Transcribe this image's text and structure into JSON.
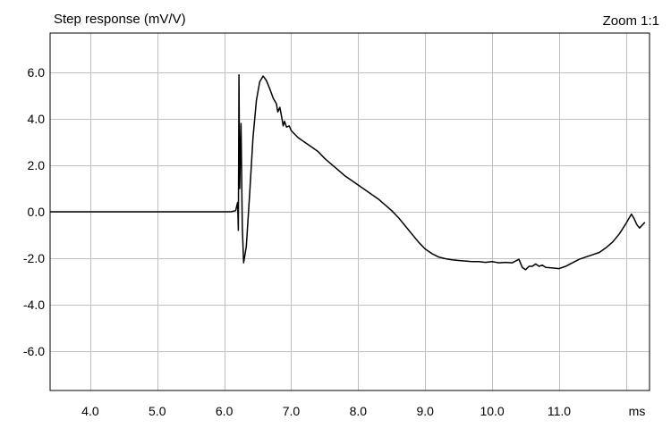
{
  "chart_data": {
    "type": "line",
    "title": "Step response (mV/V)",
    "zoom_label": "Zoom 1:1",
    "x_unit_label": "ms",
    "xlabel": "",
    "ylabel": "",
    "xlim": [
      3.4,
      12.35
    ],
    "ylim": [
      -7.7,
      7.7
    ],
    "x_ticks": [
      4.0,
      5.0,
      6.0,
      7.0,
      8.0,
      9.0,
      10.0,
      11.0
    ],
    "x_tick_labels": [
      "4.0",
      "5.0",
      "6.0",
      "7.0",
      "8.0",
      "9.0",
      "10.0",
      "11.0"
    ],
    "y_ticks": [
      6.0,
      4.0,
      2.0,
      0.0,
      -2.0,
      -4.0,
      -6.0
    ],
    "y_tick_labels": [
      "6.0",
      "4.0",
      "2.0",
      "0.0",
      "-2.0",
      "-4.0",
      "-6.0"
    ],
    "x_grid": [
      4.0,
      5.0,
      6.0,
      7.0,
      8.0,
      9.0,
      10.0,
      11.0,
      12.0
    ],
    "y_grid": [
      6.0,
      4.0,
      2.0,
      0.0,
      -2.0,
      -4.0,
      -6.0
    ],
    "grid": true,
    "colors": {
      "grid": "#c0c0c0",
      "line": "#000000",
      "frame": "#000000",
      "background": "#ffffff"
    },
    "series": [
      {
        "points": [
          [
            3.4,
            0.0
          ],
          [
            6.1,
            0.0
          ],
          [
            6.17,
            0.05
          ],
          [
            6.2,
            0.4
          ],
          [
            6.21,
            -0.8
          ],
          [
            6.22,
            5.9
          ],
          [
            6.23,
            1.0
          ],
          [
            6.25,
            3.8
          ],
          [
            6.27,
            -0.6
          ],
          [
            6.29,
            -2.2
          ],
          [
            6.33,
            -1.5
          ],
          [
            6.38,
            0.8
          ],
          [
            6.43,
            3.2
          ],
          [
            6.48,
            4.8
          ],
          [
            6.53,
            5.6
          ],
          [
            6.58,
            5.85
          ],
          [
            6.63,
            5.65
          ],
          [
            6.68,
            5.3
          ],
          [
            6.73,
            4.9
          ],
          [
            6.78,
            4.65
          ],
          [
            6.8,
            4.3
          ],
          [
            6.83,
            4.5
          ],
          [
            6.86,
            4.05
          ],
          [
            6.88,
            3.7
          ],
          [
            6.9,
            3.9
          ],
          [
            6.93,
            3.65
          ],
          [
            6.97,
            3.7
          ],
          [
            7.0,
            3.5
          ],
          [
            7.1,
            3.2
          ],
          [
            7.2,
            3.0
          ],
          [
            7.3,
            2.8
          ],
          [
            7.4,
            2.6
          ],
          [
            7.5,
            2.3
          ],
          [
            7.6,
            2.05
          ],
          [
            7.7,
            1.8
          ],
          [
            7.8,
            1.55
          ],
          [
            7.9,
            1.35
          ],
          [
            8.0,
            1.15
          ],
          [
            8.1,
            0.95
          ],
          [
            8.2,
            0.75
          ],
          [
            8.3,
            0.55
          ],
          [
            8.4,
            0.3
          ],
          [
            8.5,
            0.05
          ],
          [
            8.6,
            -0.25
          ],
          [
            8.7,
            -0.6
          ],
          [
            8.8,
            -0.95
          ],
          [
            8.9,
            -1.3
          ],
          [
            9.0,
            -1.6
          ],
          [
            9.1,
            -1.8
          ],
          [
            9.2,
            -1.95
          ],
          [
            9.3,
            -2.02
          ],
          [
            9.4,
            -2.07
          ],
          [
            9.5,
            -2.1
          ],
          [
            9.6,
            -2.12
          ],
          [
            9.7,
            -2.15
          ],
          [
            9.8,
            -2.15
          ],
          [
            9.9,
            -2.18
          ],
          [
            10.0,
            -2.15
          ],
          [
            10.1,
            -2.2
          ],
          [
            10.2,
            -2.18
          ],
          [
            10.3,
            -2.2
          ],
          [
            10.4,
            -2.05
          ],
          [
            10.45,
            -2.4
          ],
          [
            10.5,
            -2.5
          ],
          [
            10.55,
            -2.35
          ],
          [
            10.6,
            -2.35
          ],
          [
            10.65,
            -2.25
          ],
          [
            10.7,
            -2.35
          ],
          [
            10.75,
            -2.3
          ],
          [
            10.8,
            -2.4
          ],
          [
            10.9,
            -2.42
          ],
          [
            11.0,
            -2.45
          ],
          [
            11.1,
            -2.35
          ],
          [
            11.2,
            -2.2
          ],
          [
            11.3,
            -2.05
          ],
          [
            11.4,
            -1.95
          ],
          [
            11.5,
            -1.85
          ],
          [
            11.6,
            -1.75
          ],
          [
            11.7,
            -1.55
          ],
          [
            11.8,
            -1.3
          ],
          [
            11.9,
            -0.95
          ],
          [
            12.0,
            -0.5
          ],
          [
            12.05,
            -0.25
          ],
          [
            12.08,
            -0.1
          ],
          [
            12.12,
            -0.3
          ],
          [
            12.16,
            -0.55
          ],
          [
            12.2,
            -0.7
          ],
          [
            12.25,
            -0.55
          ],
          [
            12.28,
            -0.45
          ]
        ]
      }
    ]
  }
}
